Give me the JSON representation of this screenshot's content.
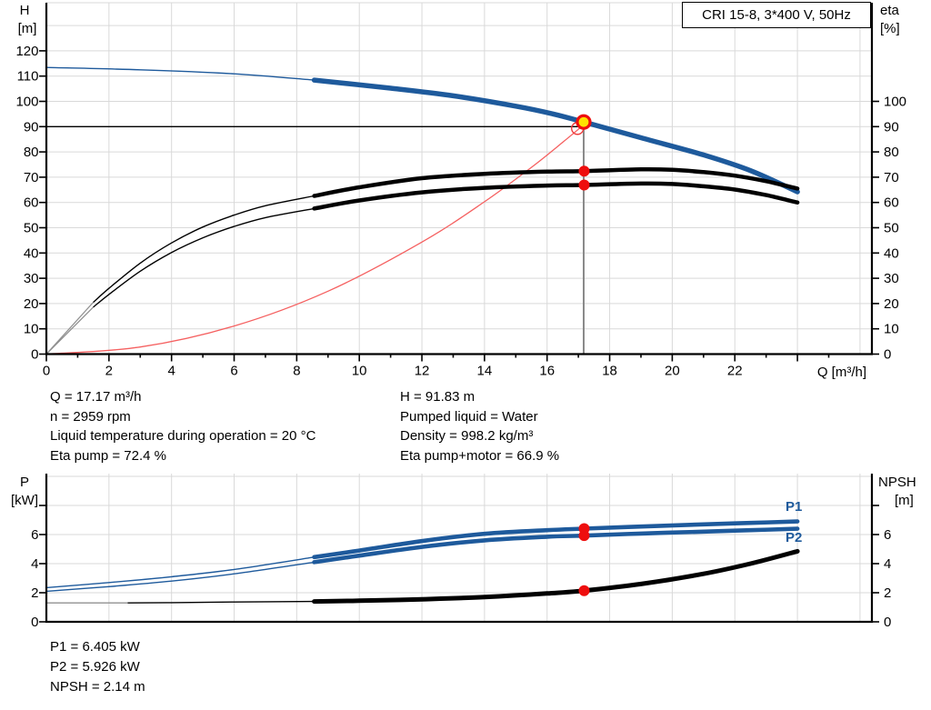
{
  "title_box": {
    "label": "CRI 15-8, 3*400 V, 50Hz"
  },
  "colors": {
    "pump_blue": "#1e5a9c",
    "curve_black": "#000000",
    "curve_grey_lead": "#909090",
    "system_red": "#f56060",
    "dot_red": "#ee0e0e",
    "duty_yellow": "#ffe100",
    "grid": "#d9d9d9",
    "op_line_grey": "#8a8a8a"
  },
  "axis_labels": {
    "top_left_1": "H",
    "top_left_2": "[m]",
    "top_right_1": "eta",
    "top_right_2": "[%]",
    "x": "Q [m³/h]",
    "bottom_left_1": "P",
    "bottom_left_2": "[kW]",
    "bottom_right_1": "NPSH",
    "bottom_right_2": "[m]",
    "p1": "P1",
    "p2": "P2"
  },
  "annotations": {
    "left": [
      "Q = 17.17 m³/h",
      "n = 2959 rpm",
      "Liquid temperature during operation = 20 °C",
      "Eta pump = 72.4 %"
    ],
    "right": [
      "H = 91.83 m",
      "Pumped liquid = Water",
      "Density = 998.2 kg/m³",
      "Eta pump+motor = 66.9 %"
    ],
    "bottom": [
      "P1 = 6.405 kW",
      "P2 = 5.926 kW",
      "NPSH = 2.14 m"
    ]
  },
  "chart_data": [
    {
      "type": "line",
      "title": "CRI 15-8, 3*400 V, 50Hz",
      "xlabel": "Q [m³/h]",
      "ylabel_left": "H [m]",
      "ylabel_right": "eta [%]",
      "xlim": [
        0,
        26.4
      ],
      "ylim": [
        0,
        139
      ],
      "grid": true,
      "x_ticks_labeled": [
        0,
        2,
        4,
        6,
        8,
        10,
        12,
        14,
        16,
        18,
        20,
        22
      ],
      "y_ticks_left": [
        0,
        10,
        20,
        30,
        40,
        50,
        60,
        70,
        80,
        90,
        100,
        110,
        120
      ],
      "y_ticks_right": [
        0,
        10,
        20,
        30,
        40,
        50,
        60,
        70,
        80,
        90,
        100
      ],
      "series": [
        {
          "name": "pump-curve-H",
          "axis": "left",
          "color": "#1e5a9c",
          "thick_from": 8.56,
          "points": [
            [
              0,
              113.4
            ],
            [
              3,
              112.5
            ],
            [
              6,
              110.9
            ],
            [
              8.56,
              108.4
            ],
            [
              11,
              105.2
            ],
            [
              13,
              102.2
            ],
            [
              15,
              98.1
            ],
            [
              16.2,
              95.0
            ],
            [
              17.17,
              91.83
            ],
            [
              19,
              85.6
            ],
            [
              21,
              78.8
            ],
            [
              22.5,
              72.6
            ],
            [
              24,
              64.2
            ]
          ]
        },
        {
          "name": "eta-pump",
          "axis": "right",
          "color": "#000000",
          "grey_until": 1.5,
          "thick_from": 8.56,
          "points": [
            [
              0,
              0
            ],
            [
              1.5,
              20.5
            ],
            [
              2,
              26
            ],
            [
              3,
              36
            ],
            [
              4,
              44
            ],
            [
              5,
              50.3
            ],
            [
              6,
              55
            ],
            [
              7,
              58.7
            ],
            [
              8.56,
              62.6
            ],
            [
              10,
              66
            ],
            [
              12,
              69.6
            ],
            [
              14,
              71.3
            ],
            [
              16,
              72.2
            ],
            [
              17.17,
              72.4
            ],
            [
              19,
              73.1
            ],
            [
              20,
              72.9
            ],
            [
              21,
              72
            ],
            [
              22,
              70.6
            ],
            [
              23,
              68.4
            ],
            [
              24,
              65.5
            ]
          ]
        },
        {
          "name": "eta-pump-motor",
          "axis": "right",
          "color": "#000000",
          "grey_until": 1.5,
          "thick_from": 8.56,
          "points": [
            [
              0,
              0
            ],
            [
              1.5,
              18.6
            ],
            [
              2,
              23.6
            ],
            [
              3,
              32.8
            ],
            [
              4,
              40.2
            ],
            [
              5,
              46
            ],
            [
              6,
              50.5
            ],
            [
              7,
              54
            ],
            [
              8.56,
              57.6
            ],
            [
              10,
              60.8
            ],
            [
              12,
              64
            ],
            [
              14,
              65.8
            ],
            [
              16,
              66.7
            ],
            [
              17.17,
              66.9
            ],
            [
              19,
              67.5
            ],
            [
              20,
              67.3
            ],
            [
              21,
              66.4
            ],
            [
              22,
              65.1
            ],
            [
              23,
              62.9
            ],
            [
              24,
              60
            ]
          ]
        },
        {
          "name": "system-curve",
          "axis": "left",
          "color": "#f56060",
          "thin": true,
          "points": [
            [
              0,
              0
            ],
            [
              3,
              2.8
            ],
            [
              6,
              11.1
            ],
            [
              9,
              24.9
            ],
            [
              12,
              44.3
            ],
            [
              14,
              60.3
            ],
            [
              15.5,
              73.9
            ],
            [
              16.5,
              83.8
            ],
            [
              17.1,
              90
            ]
          ]
        }
      ],
      "operating_point": {
        "Q": 17.17,
        "H": 91.83
      },
      "requested_point": {
        "Q": 17.06,
        "H": 89.3
      },
      "eta_dots": [
        {
          "Q": 17.17,
          "eta": 72.4
        },
        {
          "Q": 17.17,
          "eta": 66.9
        }
      ],
      "hline_H": 90,
      "vline_Q": 17.17
    },
    {
      "type": "line",
      "xlabel": "Q [m³/h]",
      "ylabel_left": "P [kW]",
      "ylabel_right": "NPSH [m]",
      "xlim": [
        0,
        26.4
      ],
      "ylim": [
        0,
        10.2
      ],
      "grid": true,
      "y_ticks_labeled": [
        0,
        2,
        4,
        6
      ],
      "y_ticks_unlabeled": [
        8
      ],
      "series": [
        {
          "name": "P1-curve",
          "axis": "left",
          "color": "#1e5a9c",
          "thick_from": 8.56,
          "points": [
            [
              0,
              2.35
            ],
            [
              2,
              2.7
            ],
            [
              4,
              3.1
            ],
            [
              6,
              3.6
            ],
            [
              8.56,
              4.45
            ],
            [
              10,
              4.9
            ],
            [
              12,
              5.55
            ],
            [
              14,
              6.05
            ],
            [
              16,
              6.3
            ],
            [
              17.17,
              6.405
            ],
            [
              19,
              6.55
            ],
            [
              21,
              6.7
            ],
            [
              22.5,
              6.8
            ],
            [
              24,
              6.9
            ]
          ]
        },
        {
          "name": "P2-curve",
          "axis": "left",
          "color": "#1e5a9c",
          "thick_from": 8.56,
          "points": [
            [
              0,
              2.1
            ],
            [
              2,
              2.42
            ],
            [
              4,
              2.8
            ],
            [
              6,
              3.3
            ],
            [
              8.56,
              4.1
            ],
            [
              10,
              4.55
            ],
            [
              12,
              5.15
            ],
            [
              14,
              5.6
            ],
            [
              16,
              5.85
            ],
            [
              17.17,
              5.926
            ],
            [
              19,
              6.07
            ],
            [
              21,
              6.2
            ],
            [
              22.5,
              6.3
            ],
            [
              24,
              6.4
            ]
          ]
        },
        {
          "name": "NPSH-curve",
          "axis": "right",
          "color": "#000000",
          "grey_until": 2.6,
          "thick_from": 8.56,
          "points": [
            [
              0,
              1.3
            ],
            [
              2.6,
              1.3
            ],
            [
              4,
              1.32
            ],
            [
              6,
              1.36
            ],
            [
              8.56,
              1.4
            ],
            [
              10,
              1.45
            ],
            [
              12,
              1.55
            ],
            [
              14,
              1.7
            ],
            [
              16,
              1.95
            ],
            [
              17.17,
              2.14
            ],
            [
              19,
              2.6
            ],
            [
              21,
              3.3
            ],
            [
              22.5,
              4.0
            ],
            [
              24,
              4.85
            ]
          ]
        }
      ],
      "dots": [
        {
          "Q": 17.17,
          "v": 6.405
        },
        {
          "Q": 17.17,
          "v": 5.926
        },
        {
          "Q": 17.17,
          "v": 2.14
        }
      ]
    }
  ]
}
